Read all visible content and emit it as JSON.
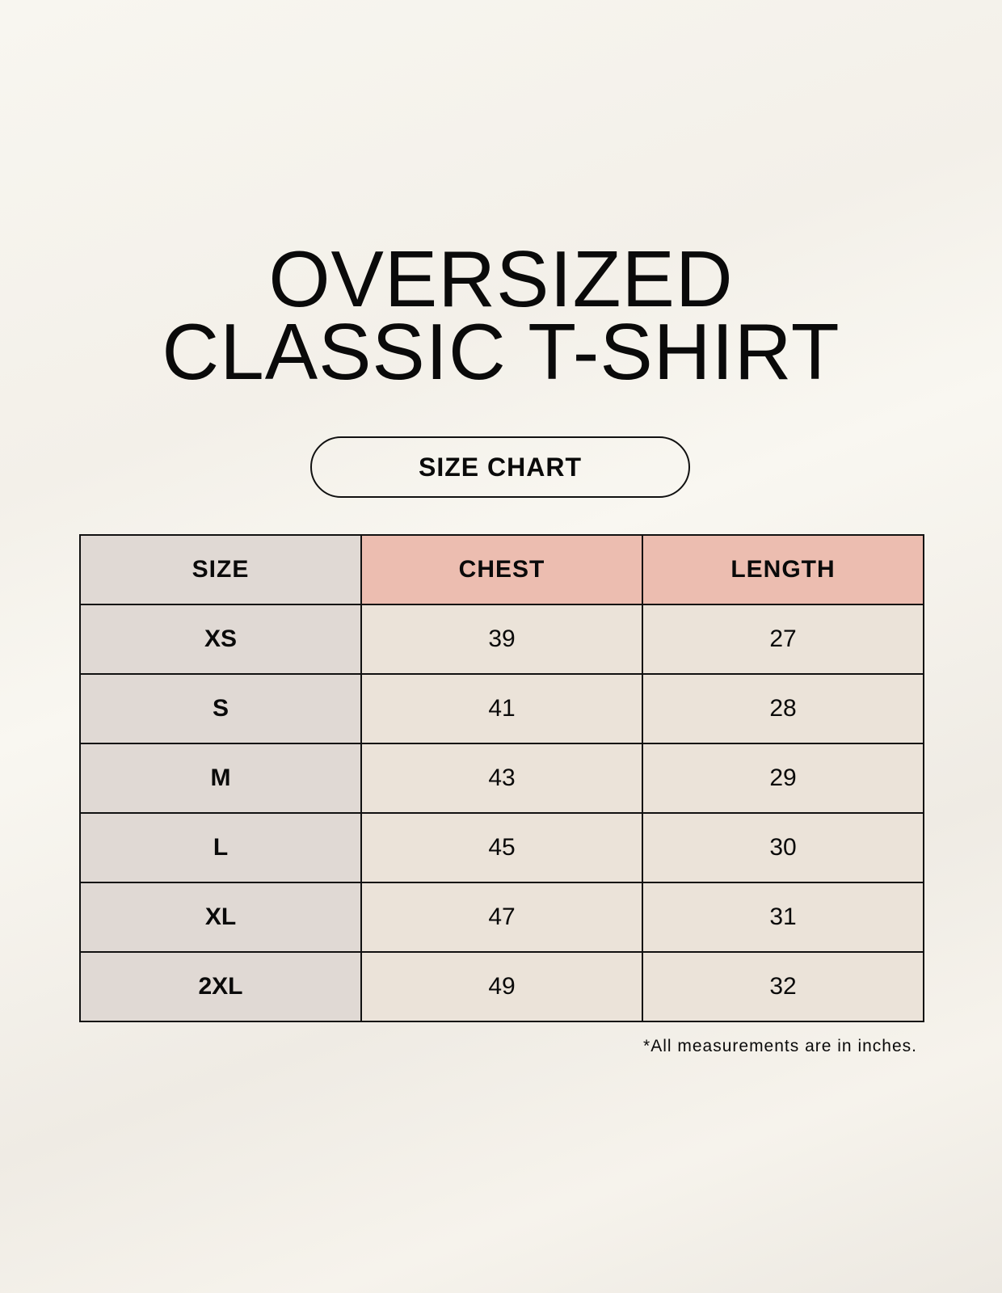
{
  "title": {
    "line1": "OVERSIZED",
    "line2": "CLASSIC T-SHIRT"
  },
  "badge": "SIZE CHART",
  "table": {
    "headers": [
      "SIZE",
      "CHEST",
      "LENGTH"
    ],
    "rows": [
      [
        "XS",
        "39",
        "27"
      ],
      [
        "S",
        "41",
        "28"
      ],
      [
        "M",
        "43",
        "29"
      ],
      [
        "L",
        "45",
        "30"
      ],
      [
        "XL",
        "47",
        "31"
      ],
      [
        "2XL",
        "49",
        "32"
      ]
    ]
  },
  "note": "*All measurements are in inches.",
  "colors": {
    "size_column": "#e0d9d4",
    "header_accent": "#ecbdb0",
    "value_cells": "#ebe3d9"
  }
}
